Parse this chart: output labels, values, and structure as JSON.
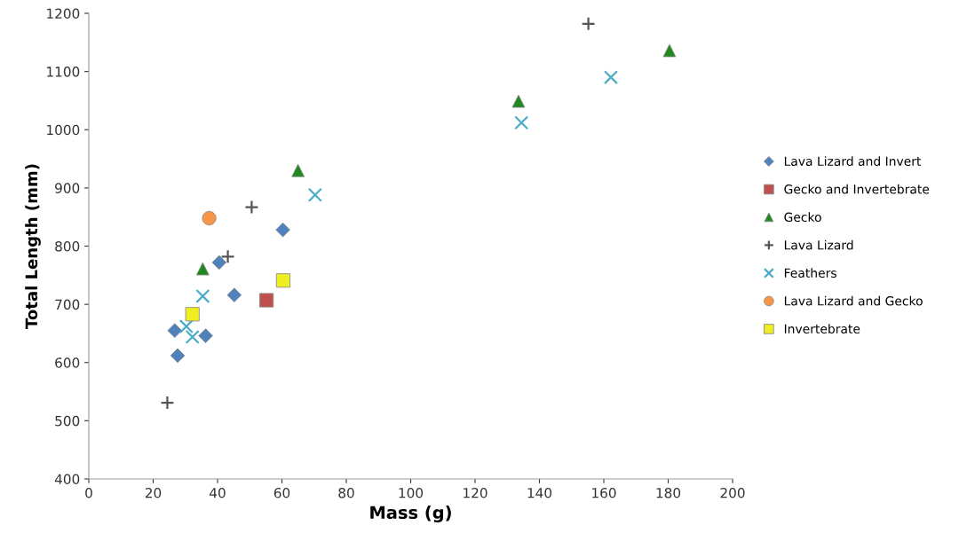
{
  "chart_data": {
    "type": "scatter",
    "xlabel": "Mass (g)",
    "ylabel": "Total Length (mm)",
    "xlim": [
      0,
      200
    ],
    "xticks": [
      0,
      20,
      40,
      60,
      80,
      100,
      120,
      140,
      160,
      180,
      200
    ],
    "ylim": [
      400,
      1200
    ],
    "yticks": [
      400,
      500,
      600,
      700,
      800,
      900,
      1000,
      1100,
      1200
    ],
    "grid": false,
    "legend": "right",
    "series": [
      {
        "name": "Lava Lizard and Invert",
        "color": "#4f81bd",
        "marker": "diamond",
        "x": [
          26.7,
          27.6,
          36.3,
          40.5,
          45.2,
          60.3
        ],
        "values": [
          655,
          612,
          646,
          772,
          716,
          828
        ]
      },
      {
        "name": "Gecko and Invertebrate",
        "color": "#c0504d",
        "marker": "square",
        "x": [
          55.2
        ],
        "values": [
          707
        ]
      },
      {
        "name": "Gecko",
        "color": "#1e8a1e",
        "marker": "triangle",
        "x": [
          35.4,
          65,
          133.5,
          180.4
        ],
        "values": [
          761,
          930,
          1049,
          1136
        ]
      },
      {
        "name": "Lava Lizard",
        "color": "#555555",
        "marker": "plus",
        "x": [
          24.4,
          43.2,
          50.6,
          155.2
        ],
        "values": [
          531,
          782,
          867,
          1182
        ]
      },
      {
        "name": "Feathers",
        "color": "#4bacc6",
        "marker": "cross",
        "x": [
          35.4,
          30.3,
          32.2,
          70.3,
          134.4,
          162.2
        ],
        "values": [
          714,
          662,
          644,
          888,
          1012,
          1090
        ]
      },
      {
        "name": "Lava Lizard and Gecko",
        "color": "#f79646",
        "marker": "circle",
        "x": [
          37.4
        ],
        "values": [
          848
        ]
      },
      {
        "name": "Invertebrate",
        "color": "#eeee22",
        "marker": "square",
        "x": [
          32.2,
          60.4
        ],
        "values": [
          683,
          741
        ]
      }
    ]
  }
}
